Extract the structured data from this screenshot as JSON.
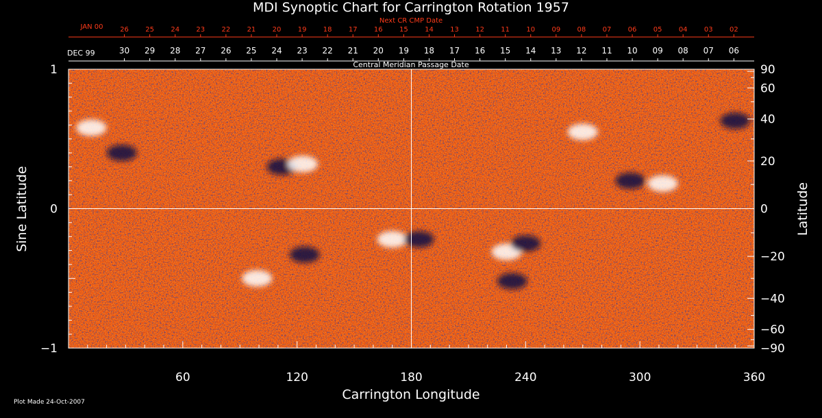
{
  "chart_data": {
    "type": "heatmap",
    "title": "MDI Synoptic Chart for Carrington Rotation 1957",
    "top_axis": {
      "next_label": "Next CR CMP Date",
      "next_first": "JAN 00",
      "next_ticks": [
        "26",
        "25",
        "24",
        "23",
        "22",
        "21",
        "20",
        "19",
        "18",
        "17",
        "16",
        "15",
        "14",
        "13",
        "12",
        "11",
        "10",
        "09",
        "08",
        "07",
        "06",
        "05",
        "04",
        "03",
        "02"
      ],
      "cmp_label": "Central Meridian Passage Date",
      "cmp_first": "DEC 99",
      "cmp_ticks": [
        "30",
        "29",
        "28",
        "27",
        "26",
        "25",
        "24",
        "23",
        "22",
        "21",
        "20",
        "19",
        "18",
        "17",
        "16",
        "15",
        "14",
        "13",
        "12",
        "11",
        "10",
        "09",
        "08",
        "07",
        "06"
      ]
    },
    "xlabel": "Carrington Longitude",
    "x_ticks": [
      60,
      120,
      180,
      240,
      300,
      360
    ],
    "xlim": [
      0,
      360
    ],
    "ylabel_left": "Sine Latitude",
    "y_ticks_left": [
      {
        "value": 1,
        "label": "1"
      },
      {
        "value": 0,
        "label": "0"
      },
      {
        "value": -1,
        "label": "−1"
      }
    ],
    "ylim": [
      -1,
      1
    ],
    "ylabel_right": "Latitude",
    "y_ticks_right": [
      {
        "value": 90,
        "label": "90"
      },
      {
        "value": 60,
        "label": "60"
      },
      {
        "value": 40,
        "label": "40"
      },
      {
        "value": 20,
        "label": "20"
      },
      {
        "value": 0,
        "label": "0"
      },
      {
        "value": -20,
        "label": "−20"
      },
      {
        "value": -40,
        "label": "−40"
      },
      {
        "value": -60,
        "label": "−60"
      },
      {
        "value": -90,
        "label": "−90"
      }
    ],
    "crosshair": {
      "longitude": 180,
      "sine_latitude": 0
    },
    "colors": {
      "background_field": "#ff5a00",
      "positive_polarity": "#ffffff",
      "negative_polarity": "#0a0a45",
      "axis": "#ffffff",
      "top_axis_accent": "#ff3b1a"
    },
    "active_regions": [
      {
        "lon": 12,
        "sinlat": 0.58,
        "polarity": "positive"
      },
      {
        "lon": 28,
        "sinlat": 0.4,
        "polarity": "negative"
      },
      {
        "lon": 112,
        "sinlat": 0.3,
        "polarity": "negative"
      },
      {
        "lon": 123,
        "sinlat": 0.32,
        "polarity": "positive"
      },
      {
        "lon": 170,
        "sinlat": -0.22,
        "polarity": "positive"
      },
      {
        "lon": 184,
        "sinlat": -0.22,
        "polarity": "negative"
      },
      {
        "lon": 124,
        "sinlat": -0.33,
        "polarity": "negative"
      },
      {
        "lon": 99,
        "sinlat": -0.5,
        "polarity": "positive"
      },
      {
        "lon": 230,
        "sinlat": -0.31,
        "polarity": "positive"
      },
      {
        "lon": 240,
        "sinlat": -0.25,
        "polarity": "negative"
      },
      {
        "lon": 233,
        "sinlat": -0.52,
        "polarity": "negative"
      },
      {
        "lon": 295,
        "sinlat": 0.2,
        "polarity": "negative"
      },
      {
        "lon": 312,
        "sinlat": 0.18,
        "polarity": "positive"
      },
      {
        "lon": 350,
        "sinlat": 0.63,
        "polarity": "negative"
      },
      {
        "lon": 270,
        "sinlat": 0.55,
        "polarity": "positive"
      }
    ]
  },
  "footer": {
    "plot_made": "Plot Made 24-Oct-2007"
  }
}
